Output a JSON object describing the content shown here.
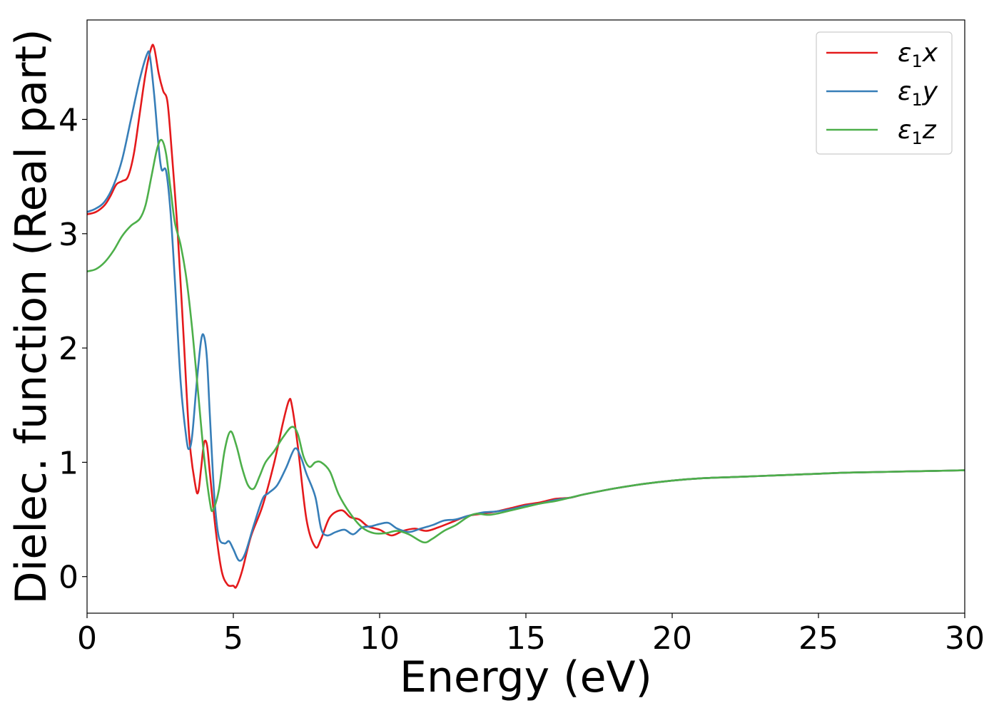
{
  "chart_data": {
    "type": "line",
    "title": "",
    "xlabel": "Energy (eV)",
    "ylabel": "Dielec. function (Real part)",
    "xlim": [
      0,
      30
    ],
    "ylim": [
      -0.32,
      4.87
    ],
    "grid": false,
    "legend_position": "top-right",
    "x_ticks": [
      0,
      5,
      10,
      15,
      20,
      25,
      30
    ],
    "x_tick_labels": [
      "0",
      "5",
      "10",
      "15",
      "20",
      "25",
      "30"
    ],
    "y_ticks": [
      0,
      1,
      2,
      3,
      4
    ],
    "y_tick_labels": [
      "0",
      "1",
      "2",
      "3",
      "4"
    ],
    "series": [
      {
        "name": "ε1x",
        "legend": {
          "symbol": "ε",
          "sub": "1",
          "comp": "x"
        },
        "color": "#e41a1c",
        "points": [
          [
            0,
            3.17
          ],
          [
            0.3,
            3.19
          ],
          [
            0.6,
            3.25
          ],
          [
            0.8,
            3.33
          ],
          [
            1.0,
            3.43
          ],
          [
            1.2,
            3.46
          ],
          [
            1.4,
            3.5
          ],
          [
            1.6,
            3.7
          ],
          [
            1.8,
            4.05
          ],
          [
            2.0,
            4.4
          ],
          [
            2.2,
            4.63
          ],
          [
            2.3,
            4.62
          ],
          [
            2.45,
            4.4
          ],
          [
            2.6,
            4.25
          ],
          [
            2.75,
            4.15
          ],
          [
            2.9,
            3.7
          ],
          [
            3.1,
            3.0
          ],
          [
            3.3,
            2.1
          ],
          [
            3.5,
            1.2
          ],
          [
            3.7,
            0.8
          ],
          [
            3.8,
            0.74
          ],
          [
            3.9,
            0.95
          ],
          [
            4.0,
            1.17
          ],
          [
            4.1,
            1.15
          ],
          [
            4.2,
            0.9
          ],
          [
            4.4,
            0.4
          ],
          [
            4.6,
            0.05
          ],
          [
            4.8,
            -0.07
          ],
          [
            5.0,
            -0.08
          ],
          [
            5.1,
            -0.09
          ],
          [
            5.3,
            0.05
          ],
          [
            5.6,
            0.35
          ],
          [
            6.0,
            0.62
          ],
          [
            6.4,
            1.0
          ],
          [
            6.7,
            1.35
          ],
          [
            6.9,
            1.54
          ],
          [
            7.0,
            1.5
          ],
          [
            7.2,
            1.15
          ],
          [
            7.5,
            0.5
          ],
          [
            7.8,
            0.26
          ],
          [
            8.0,
            0.33
          ],
          [
            8.3,
            0.52
          ],
          [
            8.7,
            0.58
          ],
          [
            9.0,
            0.52
          ],
          [
            9.3,
            0.5
          ],
          [
            9.6,
            0.44
          ],
          [
            10.0,
            0.41
          ],
          [
            10.4,
            0.36
          ],
          [
            10.8,
            0.4
          ],
          [
            11.2,
            0.42
          ],
          [
            11.6,
            0.4
          ],
          [
            12.0,
            0.43
          ],
          [
            12.5,
            0.48
          ],
          [
            13.0,
            0.53
          ],
          [
            13.5,
            0.55
          ],
          [
            14.0,
            0.57
          ],
          [
            14.5,
            0.6
          ],
          [
            15.0,
            0.63
          ],
          [
            15.5,
            0.65
          ],
          [
            16.0,
            0.68
          ],
          [
            16.5,
            0.69
          ],
          [
            17.0,
            0.72
          ],
          [
            18.0,
            0.77
          ],
          [
            19.0,
            0.81
          ],
          [
            20.0,
            0.84
          ],
          [
            21.0,
            0.86
          ],
          [
            22.0,
            0.87
          ],
          [
            23.0,
            0.88
          ],
          [
            24.0,
            0.89
          ],
          [
            25.0,
            0.9
          ],
          [
            26.0,
            0.91
          ],
          [
            27.0,
            0.915
          ],
          [
            28.0,
            0.92
          ],
          [
            29.0,
            0.925
          ],
          [
            30.0,
            0.93
          ]
        ]
      },
      {
        "name": "ε1y",
        "legend": {
          "symbol": "ε",
          "sub": "1",
          "comp": "y"
        },
        "color": "#377eb8",
        "points": [
          [
            0,
            3.19
          ],
          [
            0.3,
            3.22
          ],
          [
            0.6,
            3.28
          ],
          [
            0.9,
            3.42
          ],
          [
            1.2,
            3.65
          ],
          [
            1.5,
            4.0
          ],
          [
            1.8,
            4.35
          ],
          [
            2.05,
            4.57
          ],
          [
            2.15,
            4.55
          ],
          [
            2.3,
            4.2
          ],
          [
            2.45,
            3.75
          ],
          [
            2.55,
            3.56
          ],
          [
            2.7,
            3.55
          ],
          [
            2.85,
            3.2
          ],
          [
            3.0,
            2.6
          ],
          [
            3.2,
            1.7
          ],
          [
            3.4,
            1.2
          ],
          [
            3.5,
            1.12
          ],
          [
            3.6,
            1.25
          ],
          [
            3.75,
            1.7
          ],
          [
            3.9,
            2.07
          ],
          [
            4.0,
            2.1
          ],
          [
            4.1,
            1.9
          ],
          [
            4.2,
            1.4
          ],
          [
            4.35,
            0.7
          ],
          [
            4.5,
            0.35
          ],
          [
            4.7,
            0.29
          ],
          [
            4.85,
            0.31
          ],
          [
            5.0,
            0.24
          ],
          [
            5.2,
            0.14
          ],
          [
            5.4,
            0.2
          ],
          [
            5.7,
            0.45
          ],
          [
            6.0,
            0.68
          ],
          [
            6.2,
            0.73
          ],
          [
            6.5,
            0.8
          ],
          [
            6.8,
            0.95
          ],
          [
            7.1,
            1.12
          ],
          [
            7.3,
            1.05
          ],
          [
            7.5,
            0.9
          ],
          [
            7.8,
            0.7
          ],
          [
            8.0,
            0.42
          ],
          [
            8.2,
            0.36
          ],
          [
            8.5,
            0.39
          ],
          [
            8.8,
            0.41
          ],
          [
            9.1,
            0.37
          ],
          [
            9.4,
            0.43
          ],
          [
            9.7,
            0.44
          ],
          [
            10.0,
            0.46
          ],
          [
            10.3,
            0.47
          ],
          [
            10.6,
            0.42
          ],
          [
            11.0,
            0.39
          ],
          [
            11.4,
            0.42
          ],
          [
            11.8,
            0.45
          ],
          [
            12.2,
            0.49
          ],
          [
            12.6,
            0.5
          ],
          [
            13.0,
            0.53
          ],
          [
            13.5,
            0.56
          ],
          [
            14.0,
            0.57
          ],
          [
            14.5,
            0.59
          ],
          [
            15.0,
            0.62
          ],
          [
            15.5,
            0.64
          ],
          [
            16.0,
            0.67
          ],
          [
            16.5,
            0.69
          ],
          [
            17.0,
            0.72
          ],
          [
            18.0,
            0.77
          ],
          [
            19.0,
            0.81
          ],
          [
            20.0,
            0.84
          ],
          [
            21.0,
            0.86
          ],
          [
            22.0,
            0.87
          ],
          [
            23.0,
            0.88
          ],
          [
            24.0,
            0.89
          ],
          [
            25.0,
            0.9
          ],
          [
            26.0,
            0.91
          ],
          [
            27.0,
            0.915
          ],
          [
            28.0,
            0.92
          ],
          [
            29.0,
            0.925
          ],
          [
            30.0,
            0.93
          ]
        ]
      },
      {
        "name": "ε1z",
        "legend": {
          "symbol": "ε",
          "sub": "1",
          "comp": "z"
        },
        "color": "#4daf4a",
        "points": [
          [
            0,
            2.67
          ],
          [
            0.3,
            2.69
          ],
          [
            0.6,
            2.75
          ],
          [
            0.9,
            2.85
          ],
          [
            1.2,
            2.98
          ],
          [
            1.5,
            3.07
          ],
          [
            1.8,
            3.13
          ],
          [
            2.0,
            3.25
          ],
          [
            2.2,
            3.5
          ],
          [
            2.4,
            3.75
          ],
          [
            2.55,
            3.82
          ],
          [
            2.7,
            3.7
          ],
          [
            2.85,
            3.4
          ],
          [
            3.0,
            3.1
          ],
          [
            3.2,
            2.9
          ],
          [
            3.4,
            2.6
          ],
          [
            3.6,
            2.15
          ],
          [
            3.8,
            1.6
          ],
          [
            4.0,
            1.05
          ],
          [
            4.2,
            0.65
          ],
          [
            4.3,
            0.58
          ],
          [
            4.5,
            0.75
          ],
          [
            4.7,
            1.1
          ],
          [
            4.9,
            1.27
          ],
          [
            5.1,
            1.15
          ],
          [
            5.3,
            0.95
          ],
          [
            5.5,
            0.8
          ],
          [
            5.7,
            0.77
          ],
          [
            5.9,
            0.88
          ],
          [
            6.1,
            1.0
          ],
          [
            6.4,
            1.1
          ],
          [
            6.7,
            1.22
          ],
          [
            7.0,
            1.31
          ],
          [
            7.2,
            1.25
          ],
          [
            7.4,
            1.05
          ],
          [
            7.6,
            0.96
          ],
          [
            7.8,
            1.0
          ],
          [
            8.0,
            1.0
          ],
          [
            8.3,
            0.92
          ],
          [
            8.6,
            0.72
          ],
          [
            9.0,
            0.55
          ],
          [
            9.4,
            0.43
          ],
          [
            9.8,
            0.38
          ],
          [
            10.2,
            0.38
          ],
          [
            10.6,
            0.4
          ],
          [
            11.0,
            0.37
          ],
          [
            11.5,
            0.3
          ],
          [
            11.8,
            0.33
          ],
          [
            12.2,
            0.4
          ],
          [
            12.6,
            0.45
          ],
          [
            13.0,
            0.52
          ],
          [
            13.3,
            0.55
          ],
          [
            13.7,
            0.54
          ],
          [
            14.0,
            0.55
          ],
          [
            14.5,
            0.58
          ],
          [
            15.0,
            0.61
          ],
          [
            15.5,
            0.64
          ],
          [
            16.0,
            0.66
          ],
          [
            16.5,
            0.69
          ],
          [
            17.0,
            0.72
          ],
          [
            18.0,
            0.77
          ],
          [
            19.0,
            0.81
          ],
          [
            20.0,
            0.84
          ],
          [
            21.0,
            0.86
          ],
          [
            22.0,
            0.87
          ],
          [
            23.0,
            0.88
          ],
          [
            24.0,
            0.89
          ],
          [
            25.0,
            0.9
          ],
          [
            26.0,
            0.91
          ],
          [
            27.0,
            0.915
          ],
          [
            28.0,
            0.92
          ],
          [
            29.0,
            0.925
          ],
          [
            30.0,
            0.93
          ]
        ]
      }
    ]
  }
}
